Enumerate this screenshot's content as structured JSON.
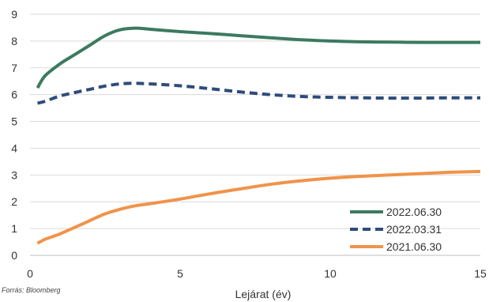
{
  "chart_data": {
    "type": "line",
    "xlabel": "Lejárat (év)",
    "ylabel": "",
    "xlim": [
      0,
      15
    ],
    "ylim": [
      0,
      9
    ],
    "xticks": [
      0,
      5,
      10,
      15
    ],
    "yticks": [
      0,
      1,
      2,
      3,
      4,
      5,
      6,
      7,
      8,
      9
    ],
    "grid": "horizontal",
    "legend": "bottom-right",
    "series": [
      {
        "name": "2022.06.30",
        "color": "#3c7a5f",
        "style": "solid",
        "x": [
          0.25,
          0.5,
          1,
          1.5,
          2,
          2.5,
          3,
          3.5,
          4,
          5,
          6,
          7,
          8,
          9,
          10,
          11,
          12,
          13,
          14,
          15
        ],
        "y": [
          6.25,
          6.7,
          7.15,
          7.5,
          7.85,
          8.2,
          8.42,
          8.48,
          8.44,
          8.35,
          8.28,
          8.2,
          8.12,
          8.05,
          8.0,
          7.97,
          7.96,
          7.95,
          7.95,
          7.95
        ]
      },
      {
        "name": "2022.03.31",
        "color": "#2f4b7c",
        "style": "dashed",
        "x": [
          0.25,
          0.5,
          1,
          1.5,
          2,
          2.5,
          3,
          3.5,
          4,
          5,
          6,
          7,
          8,
          9,
          10,
          11,
          12,
          13,
          14,
          15
        ],
        "y": [
          5.68,
          5.75,
          5.95,
          6.08,
          6.2,
          6.32,
          6.4,
          6.42,
          6.4,
          6.33,
          6.22,
          6.1,
          6.0,
          5.93,
          5.9,
          5.88,
          5.87,
          5.87,
          5.88,
          5.88
        ]
      },
      {
        "name": "2021.06.30",
        "color": "#f0934a",
        "style": "solid",
        "x": [
          0.25,
          0.5,
          1,
          1.5,
          2,
          2.5,
          3,
          3.5,
          4,
          5,
          6,
          7,
          8,
          9,
          10,
          11,
          12,
          13,
          14,
          15
        ],
        "y": [
          0.45,
          0.6,
          0.8,
          1.05,
          1.3,
          1.55,
          1.72,
          1.85,
          1.93,
          2.1,
          2.3,
          2.48,
          2.65,
          2.78,
          2.88,
          2.95,
          3.0,
          3.05,
          3.1,
          3.13
        ]
      }
    ]
  },
  "source_text": "Forrás: Bloomberg"
}
